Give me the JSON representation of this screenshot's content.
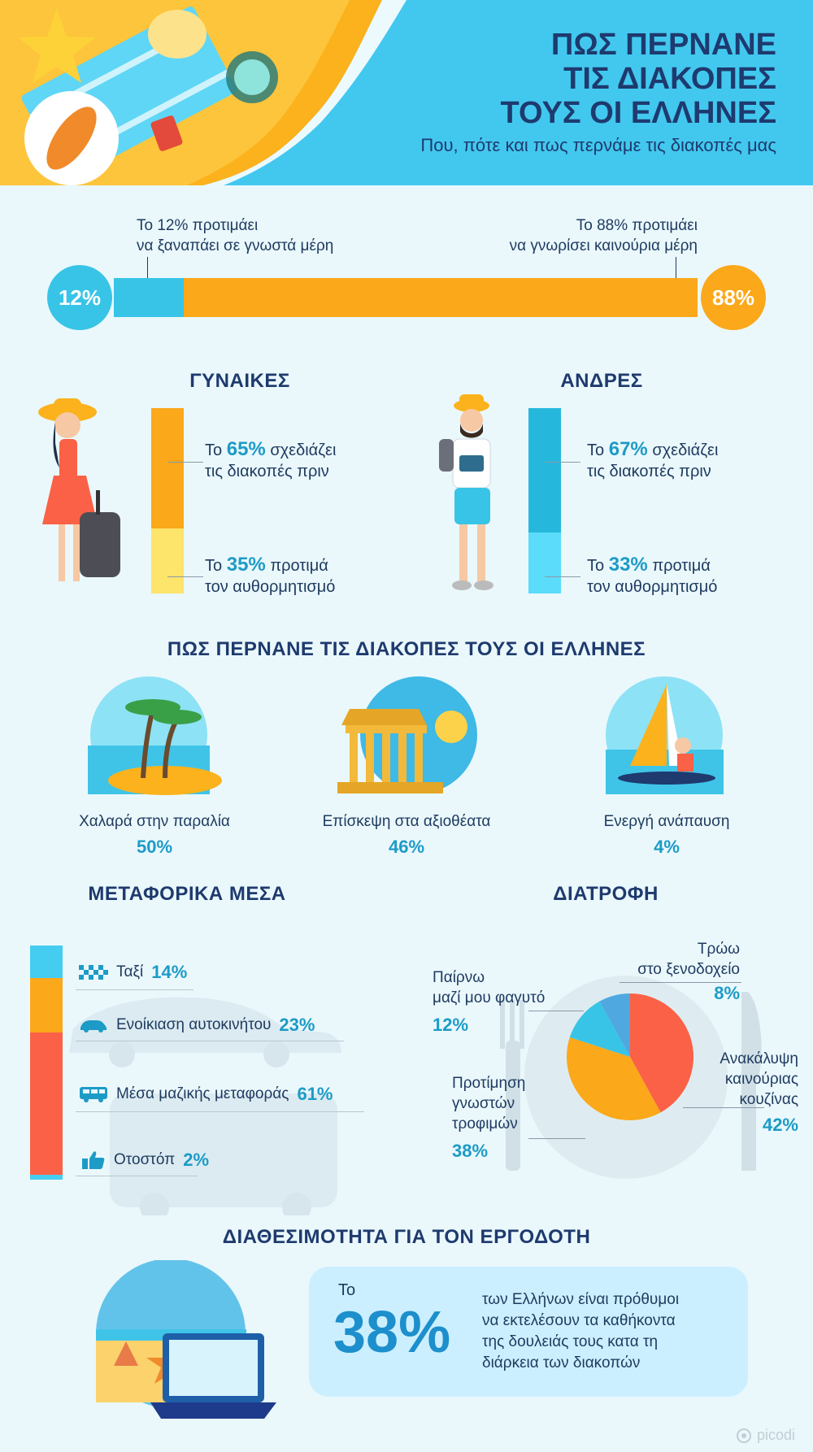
{
  "header": {
    "title_lines": [
      "ΠΩΣ ΠΕΡΝΑΝΕ",
      "ΤΙΣ ΔΙΑΚΟΠΕΣ",
      "ΤΟΥΣ ΟΙ ΕΛΛΗΝΕΣ"
    ],
    "subtitle": "Που, πότε και πως περνάμε τις διακοπές μας"
  },
  "places": {
    "left_line1": "Το 12% προτιμάει",
    "left_line2": "να ξαναπάει σε γνωστά μέρη",
    "right_line1": "Το 88% προτιμάει",
    "right_line2": "να γνωρίσει καινούρια μέρη",
    "left_value": 12,
    "right_value": 88,
    "left_badge": "12%",
    "right_badge": "88%",
    "left_color": "#38c4e6",
    "right_color": "#fba81a"
  },
  "women": {
    "heading": "ΓΥΝΑΙΚΕΣ",
    "plan_prefix": "Το",
    "plan_pct": "65%",
    "plan_suffix": "σχεδιάζει",
    "plan_line2": "τις διακοπές πριν",
    "spont_prefix": "Το",
    "spont_pct": "35%",
    "spont_suffix": "προτιμά",
    "spont_line2": "τον αυθορμητισμό",
    "plan_value": 65,
    "spont_value": 35,
    "plan_color": "#fba81a",
    "spont_color": "#fde46a"
  },
  "men": {
    "heading": "ΑΝΔΡΕΣ",
    "plan_prefix": "Το",
    "plan_pct": "67%",
    "plan_suffix": "σχεδιάζει",
    "plan_line2": "τις διακοπές πριν",
    "spont_prefix": "Το",
    "spont_pct": "33%",
    "spont_suffix": "προτιμά",
    "spont_line2": "τον αυθορμητισμό",
    "plan_value": 67,
    "spont_value": 33,
    "plan_color": "#26b8dc",
    "spont_color": "#5bdcfa"
  },
  "activities": {
    "heading": "ΠΩΣ ΠΕΡΝΑΝΕ ΤΙΣ ΔΙΑΚΟΠΕΣ ΤΟΥΣ ΟΙ ΕΛΛΗΝΕΣ",
    "items": [
      {
        "label": "Χαλαρά στην παραλία",
        "pct": "50%"
      },
      {
        "label": "Επίσκεψη στα αξιοθέατα",
        "pct": "46%"
      },
      {
        "label": "Ενεργή ανάπαυση",
        "pct": "4%"
      }
    ]
  },
  "transport": {
    "heading": "ΜΕΤΑΦΟΡΙΚΑ ΜΕΣΑ",
    "items": [
      {
        "label": "Ταξί",
        "pct": "14%",
        "value": 14,
        "color": "#44cdf0",
        "icon": "taxi-icon"
      },
      {
        "label": "Ενοίκιαση αυτοκινήτου",
        "pct": "23%",
        "value": 23,
        "color": "#fba81a",
        "icon": "car-icon"
      },
      {
        "label": "Μέσα μαζικής μεταφοράς",
        "pct": "61%",
        "value": 61,
        "color": "#fb6146",
        "icon": "bus-icon"
      },
      {
        "label": "Οτοστόπ",
        "pct": "2%",
        "value": 2,
        "color": "#44cdf0",
        "icon": "thumbs-up-icon"
      }
    ]
  },
  "food": {
    "heading": "ΔΙΑΤΡΟΦΗ",
    "items": [
      {
        "line1": "Τρώω",
        "line2": "στο ξενοδοχείο",
        "line3": "",
        "pct": "8%"
      },
      {
        "line1": "Ανακάλυψη",
        "line2": "καινούριας",
        "line3": "κουζίνας",
        "pct": "42%"
      },
      {
        "line1": "Προτίμηση",
        "line2": "γνωστών",
        "line3": "τροφιμών",
        "pct": "38%"
      },
      {
        "line1": "Παίρνω",
        "line2": "μαζί μου φαγυτό",
        "line3": "",
        "pct": "12%"
      }
    ]
  },
  "chart_data": [
    {
      "type": "bar",
      "title": "",
      "categories": [
        "Το 12% προτιμάει να ξαναπάει σε γνωστά μέρη",
        "Το 88% προτιμάει να γνωρίσει καινούρια μέρη"
      ],
      "values": [
        12,
        88
      ]
    },
    {
      "type": "bar",
      "title": "ΓΥΝΑΙΚΕΣ",
      "categories": [
        "σχεδιάζει τις διακοπές πριν",
        "προτιμά τον αυθορμητισμό"
      ],
      "values": [
        65,
        35
      ]
    },
    {
      "type": "bar",
      "title": "ΑΝΔΡΕΣ",
      "categories": [
        "σχεδιάζει τις διακοπές πριν",
        "προτιμά τον αυθορμητισμό"
      ],
      "values": [
        67,
        33
      ]
    },
    {
      "type": "bar",
      "title": "ΠΩΣ ΠΕΡΝΑΝΕ ΤΙΣ ΔΙΑΚΟΠΕΣ ΤΟΥΣ ΟΙ ΕΛΛΗΝΕΣ",
      "categories": [
        "Χαλαρά στην παραλία",
        "Επίσκεψη στα αξιοθέατα",
        "Ενεργή ανάπαυση"
      ],
      "values": [
        50,
        46,
        4
      ]
    },
    {
      "type": "bar",
      "title": "ΜΕΤΑΦΟΡΙΚΑ ΜΕΣΑ",
      "categories": [
        "Ταξί",
        "Ενοίκιαση αυτοκινήτου",
        "Μέσα μαζικής μεταφοράς",
        "Οτοστόπ"
      ],
      "values": [
        14,
        23,
        61,
        2
      ]
    },
    {
      "type": "pie",
      "title": "ΔΙΑΤΡΟΦΗ",
      "categories": [
        "Ανακάλυψη καινούριας κουζίνας",
        "Προτίμηση γνωστών τροφιμών",
        "Παίρνω μαζί μου φαγυτό",
        "Τρώω στο ξενοδοχείο"
      ],
      "values": [
        42,
        38,
        12,
        8
      ],
      "colors": [
        "#fb6146",
        "#fba81a",
        "#38c4e6",
        "#4fa8e0"
      ]
    }
  ],
  "employer": {
    "heading": "ΔΙΑΘΕΣΙΜΟΤΗΤΑ ΓΙΑ ΤΟΝ ΕΡΓΟΔΟΤΗ",
    "prefix": "Το",
    "pct": "38%",
    "line1": "των Ελλήνων είναι πρόθυμοι",
    "line2": "να εκτελέσουν τα καθήκοντα",
    "line3": "της δουλειάς τους κατα τη",
    "line4": "διάρκεια των διακοπών"
  },
  "brand": "picodi"
}
